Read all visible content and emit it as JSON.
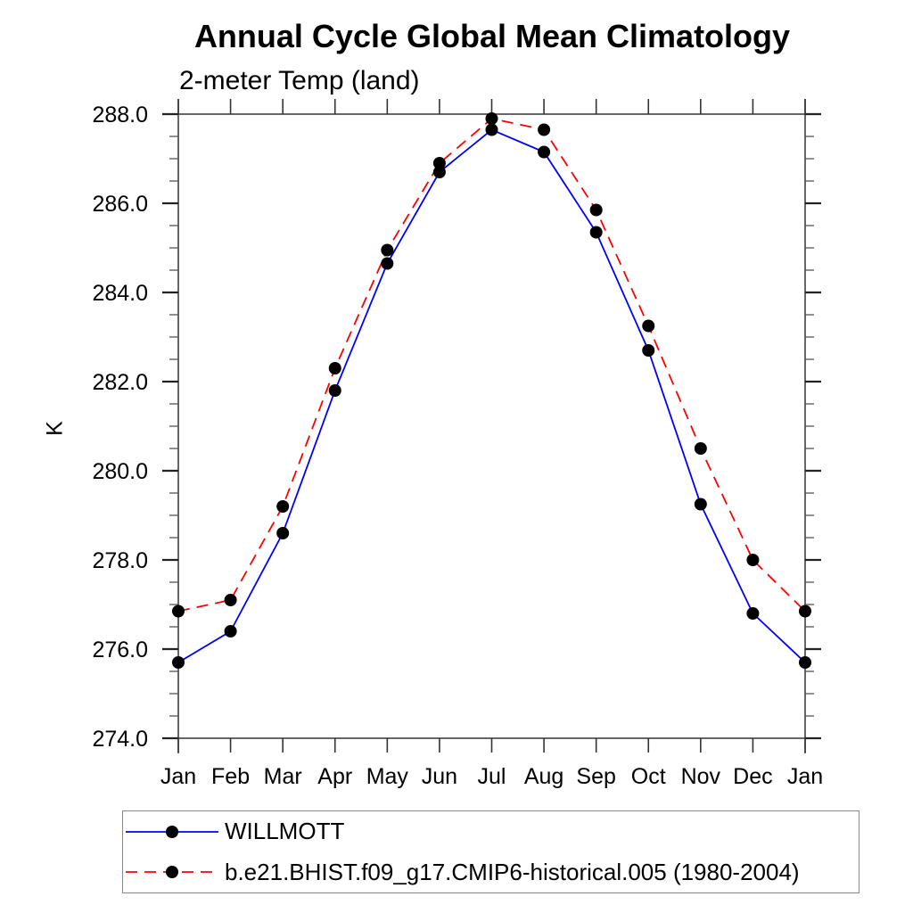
{
  "chart_data": {
    "type": "line",
    "title": "Annual Cycle Global Mean Climatology",
    "subtitle": "2-meter Temp (land)",
    "ylabel": "K",
    "x_categories": [
      "Jan",
      "Feb",
      "Mar",
      "Apr",
      "May",
      "Jun",
      "Jul",
      "Aug",
      "Sep",
      "Oct",
      "Nov",
      "Dec",
      "Jan"
    ],
    "ylim": [
      274.0,
      288.0
    ],
    "ytick_major_interval": 2.0,
    "ytick_minor_interval": 0.5,
    "grid": false,
    "legend_position": "bottom-left",
    "axis_color": "#333333",
    "marker_color": "#000000",
    "series": [
      {
        "name": "WILLMOTT",
        "slug": "willmott",
        "color": "#0000ff",
        "style": "solid",
        "marker": "filled-circle",
        "values": [
          275.7,
          276.4,
          278.6,
          281.8,
          284.65,
          286.7,
          287.65,
          287.15,
          285.35,
          282.7,
          279.25,
          276.8,
          275.7
        ]
      },
      {
        "name": "b.e21.BHIST.f09_g17.CMIP6-historical.005 (1980-2004)",
        "slug": "model",
        "color": "#ff0000",
        "style": "dashed",
        "marker": "filled-circle",
        "values": [
          276.85,
          277.1,
          279.2,
          282.3,
          284.95,
          286.9,
          287.9,
          287.65,
          285.85,
          283.25,
          280.5,
          278.0,
          276.85
        ]
      }
    ]
  }
}
